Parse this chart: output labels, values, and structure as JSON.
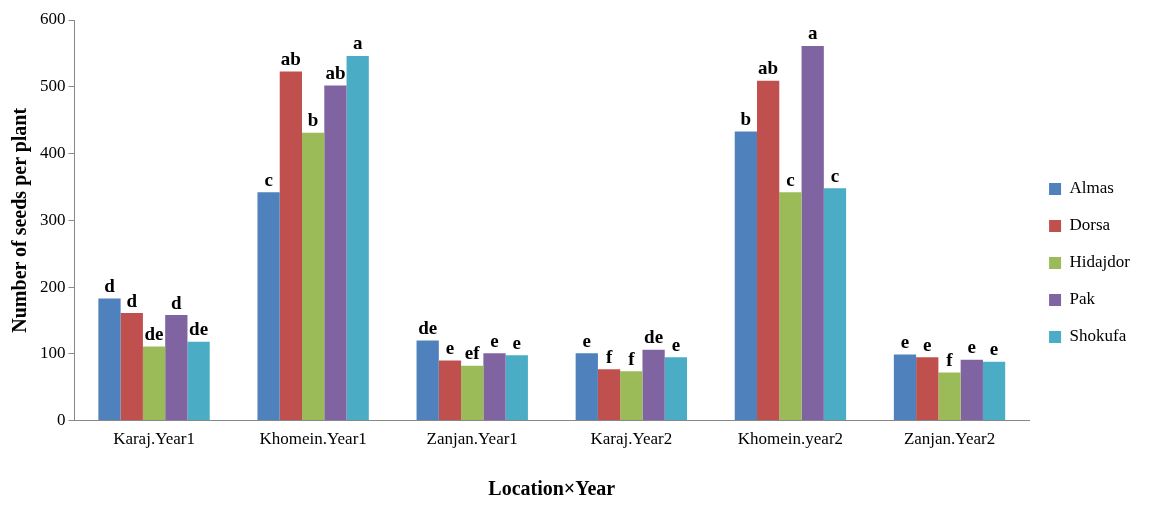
{
  "chart_data": {
    "type": "bar",
    "xlabel": "Location×Year",
    "ylabel": "Number of seeds per plant",
    "categories": [
      "Karaj.Year1",
      "Khomein.Year1",
      "Zanjan.Year1",
      "Karaj.Year2",
      "Khomein.year2",
      "Zanjan.Year2"
    ],
    "series": [
      {
        "name": "Almas",
        "color": "#4f81bd",
        "values": [
          183,
          342,
          120,
          101,
          433,
          99
        ],
        "value_labels": [
          "d",
          "c",
          "de",
          "e",
          "b",
          "e"
        ]
      },
      {
        "name": "Dorsa",
        "color": "#c0504d",
        "values": [
          161,
          523,
          90,
          77,
          509,
          95
        ],
        "value_labels": [
          "d",
          "ab",
          "e",
          "f",
          "ab",
          "e"
        ]
      },
      {
        "name": "Hidajdor",
        "color": "#9bbb59",
        "values": [
          111,
          431,
          82,
          74,
          342,
          72
        ],
        "value_labels": [
          "de",
          "b",
          "ef",
          "f",
          "c",
          "f"
        ]
      },
      {
        "name": "Pak",
        "color": "#8064a2",
        "values": [
          158,
          502,
          101,
          106,
          561,
          91
        ],
        "value_labels": [
          "d",
          "ab",
          "e",
          "de",
          "a",
          "e"
        ]
      },
      {
        "name": "Shokufa",
        "color": "#4bacc6",
        "values": [
          118,
          546,
          98,
          95,
          348,
          88
        ],
        "value_labels": [
          "de",
          "a",
          "e",
          "e",
          "c",
          "e"
        ]
      }
    ],
    "ylim": [
      0,
      600
    ],
    "yticks": [
      0,
      100,
      200,
      300,
      400,
      500,
      600
    ],
    "grid": false,
    "legend": "right"
  }
}
